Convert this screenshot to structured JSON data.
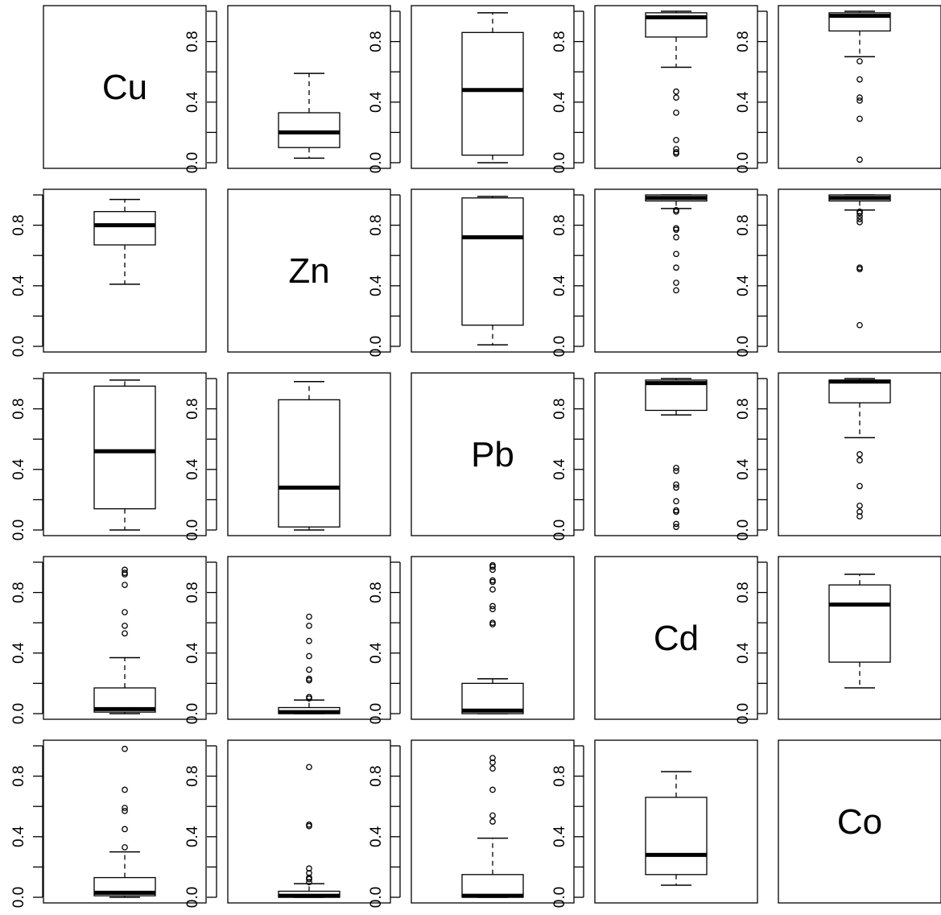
{
  "chart_data": {
    "type": "boxplot-matrix",
    "variables": [
      "Cu",
      "Zn",
      "Pb",
      "Cd",
      "Co"
    ],
    "ylim": [
      0,
      1
    ],
    "y_ticks": [
      0.0,
      0.4,
      0.8
    ],
    "y_tick_labels": [
      "0.0",
      "0.4",
      "0.8"
    ],
    "grid": false,
    "panels": [
      {
        "row": 1,
        "col": 2,
        "min": 0.03,
        "q1": 0.1,
        "median": 0.2,
        "q3": 0.33,
        "max": 0.59,
        "outliers": []
      },
      {
        "row": 1,
        "col": 3,
        "min": 0.0,
        "q1": 0.05,
        "median": 0.48,
        "q3": 0.86,
        "max": 0.99,
        "outliers": []
      },
      {
        "row": 1,
        "col": 4,
        "min": 0.63,
        "q1": 0.83,
        "median": 0.96,
        "q3": 0.99,
        "max": 1.0,
        "outliers": [
          0.47,
          0.43,
          0.33,
          0.15,
          0.09,
          0.07,
          0.06
        ]
      },
      {
        "row": 1,
        "col": 5,
        "min": 0.7,
        "q1": 0.87,
        "median": 0.97,
        "q3": 0.99,
        "max": 1.0,
        "outliers": [
          0.67,
          0.55,
          0.43,
          0.41,
          0.29,
          0.02
        ]
      },
      {
        "row": 2,
        "col": 1,
        "min": 0.41,
        "q1": 0.67,
        "median": 0.8,
        "q3": 0.89,
        "max": 0.97,
        "outliers": []
      },
      {
        "row": 2,
        "col": 3,
        "min": 0.01,
        "q1": 0.14,
        "median": 0.72,
        "q3": 0.98,
        "max": 0.99,
        "outliers": []
      },
      {
        "row": 2,
        "col": 4,
        "min": 0.91,
        "q1": 0.96,
        "median": 0.98,
        "q3": 1.0,
        "max": 1.0,
        "outliers": [
          0.9,
          0.89,
          0.78,
          0.77,
          0.72,
          0.61,
          0.52,
          0.42,
          0.37
        ]
      },
      {
        "row": 2,
        "col": 5,
        "min": 0.9,
        "q1": 0.96,
        "median": 0.98,
        "q3": 1.0,
        "max": 1.0,
        "outliers": [
          0.89,
          0.88,
          0.86,
          0.84,
          0.82,
          0.52,
          0.51,
          0.14
        ]
      },
      {
        "row": 3,
        "col": 1,
        "min": 0.0,
        "q1": 0.14,
        "median": 0.52,
        "q3": 0.95,
        "max": 0.99,
        "outliers": []
      },
      {
        "row": 3,
        "col": 2,
        "min": 0.0,
        "q1": 0.02,
        "median": 0.28,
        "q3": 0.86,
        "max": 0.98,
        "outliers": []
      },
      {
        "row": 3,
        "col": 4,
        "min": 0.76,
        "q1": 0.79,
        "median": 0.97,
        "q3": 0.99,
        "max": 1.0,
        "outliers": [
          0.41,
          0.39,
          0.3,
          0.28,
          0.19,
          0.13,
          0.12,
          0.04,
          0.02
        ]
      },
      {
        "row": 3,
        "col": 5,
        "min": 0.61,
        "q1": 0.84,
        "median": 0.98,
        "q3": 0.99,
        "max": 1.0,
        "outliers": [
          0.5,
          0.46,
          0.29,
          0.16,
          0.12,
          0.09
        ]
      },
      {
        "row": 4,
        "col": 1,
        "min": 0.0,
        "q1": 0.01,
        "median": 0.03,
        "q3": 0.17,
        "max": 0.37,
        "outliers": [
          0.95,
          0.93,
          0.92,
          0.85,
          0.67,
          0.58,
          0.53
        ]
      },
      {
        "row": 4,
        "col": 2,
        "min": 0.0,
        "q1": 0.0,
        "median": 0.01,
        "q3": 0.04,
        "max": 0.09,
        "outliers": [
          0.64,
          0.58,
          0.48,
          0.38,
          0.29,
          0.23,
          0.22,
          0.11,
          0.1
        ]
      },
      {
        "row": 4,
        "col": 3,
        "min": 0.0,
        "q1": 0.0,
        "median": 0.02,
        "q3": 0.2,
        "max": 0.23,
        "outliers": [
          0.98,
          0.97,
          0.95,
          0.88,
          0.87,
          0.82,
          0.71,
          0.69,
          0.6,
          0.59
        ]
      },
      {
        "row": 4,
        "col": 5,
        "min": 0.17,
        "q1": 0.34,
        "median": 0.72,
        "q3": 0.85,
        "max": 0.92,
        "outliers": []
      },
      {
        "row": 5,
        "col": 1,
        "min": 0.0,
        "q1": 0.01,
        "median": 0.03,
        "q3": 0.13,
        "max": 0.3,
        "outliers": [
          0.98,
          0.71,
          0.59,
          0.57,
          0.45,
          0.33
        ]
      },
      {
        "row": 5,
        "col": 2,
        "min": 0.0,
        "q1": 0.0,
        "median": 0.01,
        "q3": 0.04,
        "max": 0.09,
        "outliers": [
          0.86,
          0.48,
          0.47,
          0.19,
          0.16,
          0.13,
          0.12,
          0.1
        ]
      },
      {
        "row": 5,
        "col": 3,
        "min": 0.0,
        "q1": 0.0,
        "median": 0.01,
        "q3": 0.15,
        "max": 0.39,
        "outliers": [
          0.92,
          0.89,
          0.85,
          0.71,
          0.54,
          0.5
        ]
      },
      {
        "row": 5,
        "col": 4,
        "min": 0.08,
        "q1": 0.15,
        "median": 0.28,
        "q3": 0.66,
        "max": 0.83,
        "outliers": []
      }
    ]
  }
}
